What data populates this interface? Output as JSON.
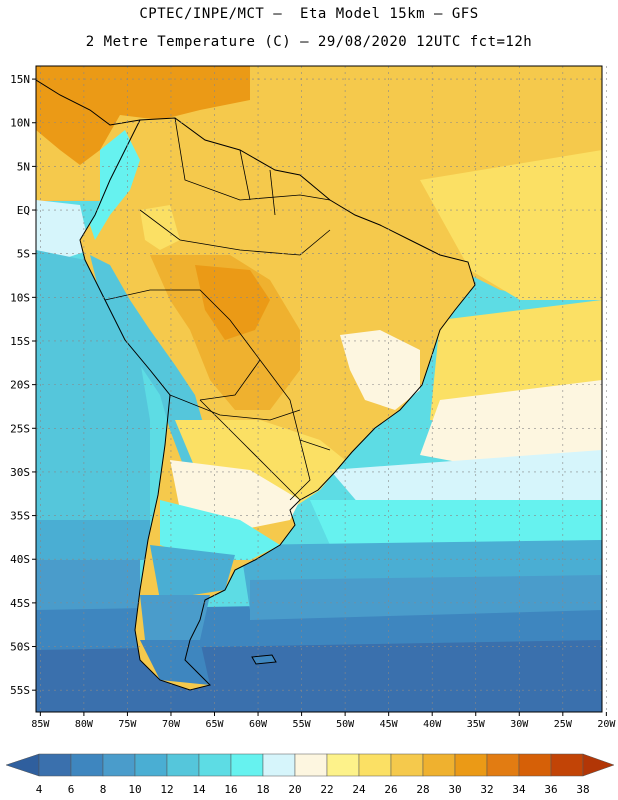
{
  "header": {
    "line1": "CPTEC/INPE/MCT –  Eta Model 15km – GFS",
    "line2": "2 Metre Temperature (C) – 29/08/2020 12UTC fct=12h"
  },
  "map": {
    "lat_labels": [
      "15N",
      "10N",
      "5N",
      "EQ",
      "5S",
      "10S",
      "15S",
      "20S",
      "25S",
      "30S",
      "35S",
      "40S",
      "45S",
      "50S",
      "55S"
    ],
    "lat_values": [
      15,
      10,
      5,
      0,
      -5,
      -10,
      -15,
      -20,
      -25,
      -30,
      -35,
      -40,
      -45,
      -50,
      -55
    ],
    "lon_labels": [
      "85W",
      "80W",
      "75W",
      "70W",
      "65W",
      "60W",
      "55W",
      "50W",
      "45W",
      "40W",
      "35W",
      "30W",
      "25W",
      "20W"
    ],
    "lon_values": [
      -85,
      -80,
      -75,
      -70,
      -65,
      -60,
      -55,
      -50,
      -45,
      -40,
      -35,
      -30,
      -25,
      -20
    ],
    "lon_range": [
      -85.5,
      -20.5
    ],
    "lat_range": [
      -57.5,
      16.5
    ]
  },
  "colorbar": {
    "labels": [
      "4",
      "6",
      "8",
      "10",
      "12",
      "14",
      "16",
      "18",
      "20",
      "22",
      "24",
      "26",
      "28",
      "30",
      "32",
      "34",
      "36",
      "38"
    ],
    "colors": [
      "#3a70ad",
      "#3e86bf",
      "#4a9ccb",
      "#4aaed3",
      "#55c6db",
      "#5ddce4",
      "#66f2ef",
      "#d6f5fb",
      "#fdf6e0",
      "#fdf28a",
      "#fbe064",
      "#f5c94c",
      "#efb12f",
      "#eb9a16",
      "#e27c12",
      "#d66007",
      "#c24406"
    ],
    "low_arrow_color": "#2f5f9e",
    "high_arrow_color": "#b23606"
  }
}
